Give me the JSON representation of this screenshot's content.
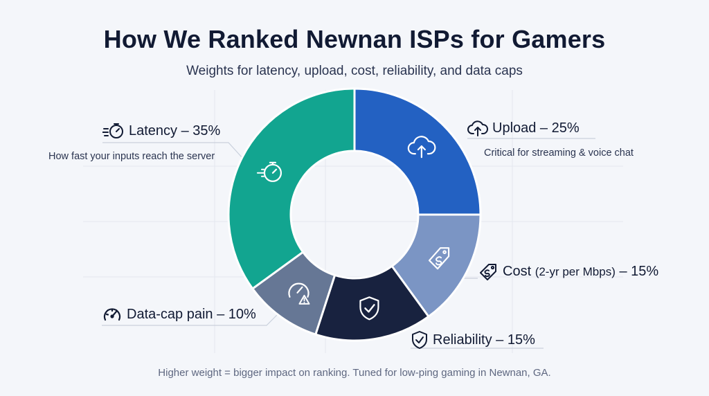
{
  "title": "How We Ranked Newnan ISPs for Gamers",
  "subtitle": "Weights for latency, upload, cost, reliability, and data caps",
  "footnote": "Higher weight = bigger impact on ranking. Tuned for low-ping gaming in Newnan, GA.",
  "labels": {
    "latency": {
      "title": "Latency – 35%",
      "desc": "How fast your inputs reach the server"
    },
    "upload": {
      "title": "Upload – 25%",
      "desc": "Critical for streaming & voice chat"
    },
    "cost": {
      "title_main": "Cost",
      "title_detail": "(2-yr per Mbps)",
      "title_tail": "– 15%"
    },
    "reliability": {
      "title": "Reliability – 15%"
    },
    "datacap": {
      "title": "Data-cap pain – 10%"
    }
  },
  "chart_data": {
    "type": "pie",
    "donut": true,
    "start_angle_deg": 0,
    "slices": [
      {
        "name": "Upload",
        "value": 25,
        "color": "#2361c2",
        "icon": "cloud-upload-icon"
      },
      {
        "name": "Cost",
        "value": 15,
        "color": "#7b95c4",
        "icon": "price-tag-icon"
      },
      {
        "name": "Reliability",
        "value": 15,
        "color": "#18223f",
        "icon": "shield-check-icon"
      },
      {
        "name": "Data-cap pain",
        "value": 10,
        "color": "#667795",
        "icon": "gauge-warning-icon"
      },
      {
        "name": "Latency",
        "value": 35,
        "color": "#12a590",
        "icon": "stopwatch-icon"
      }
    ]
  }
}
